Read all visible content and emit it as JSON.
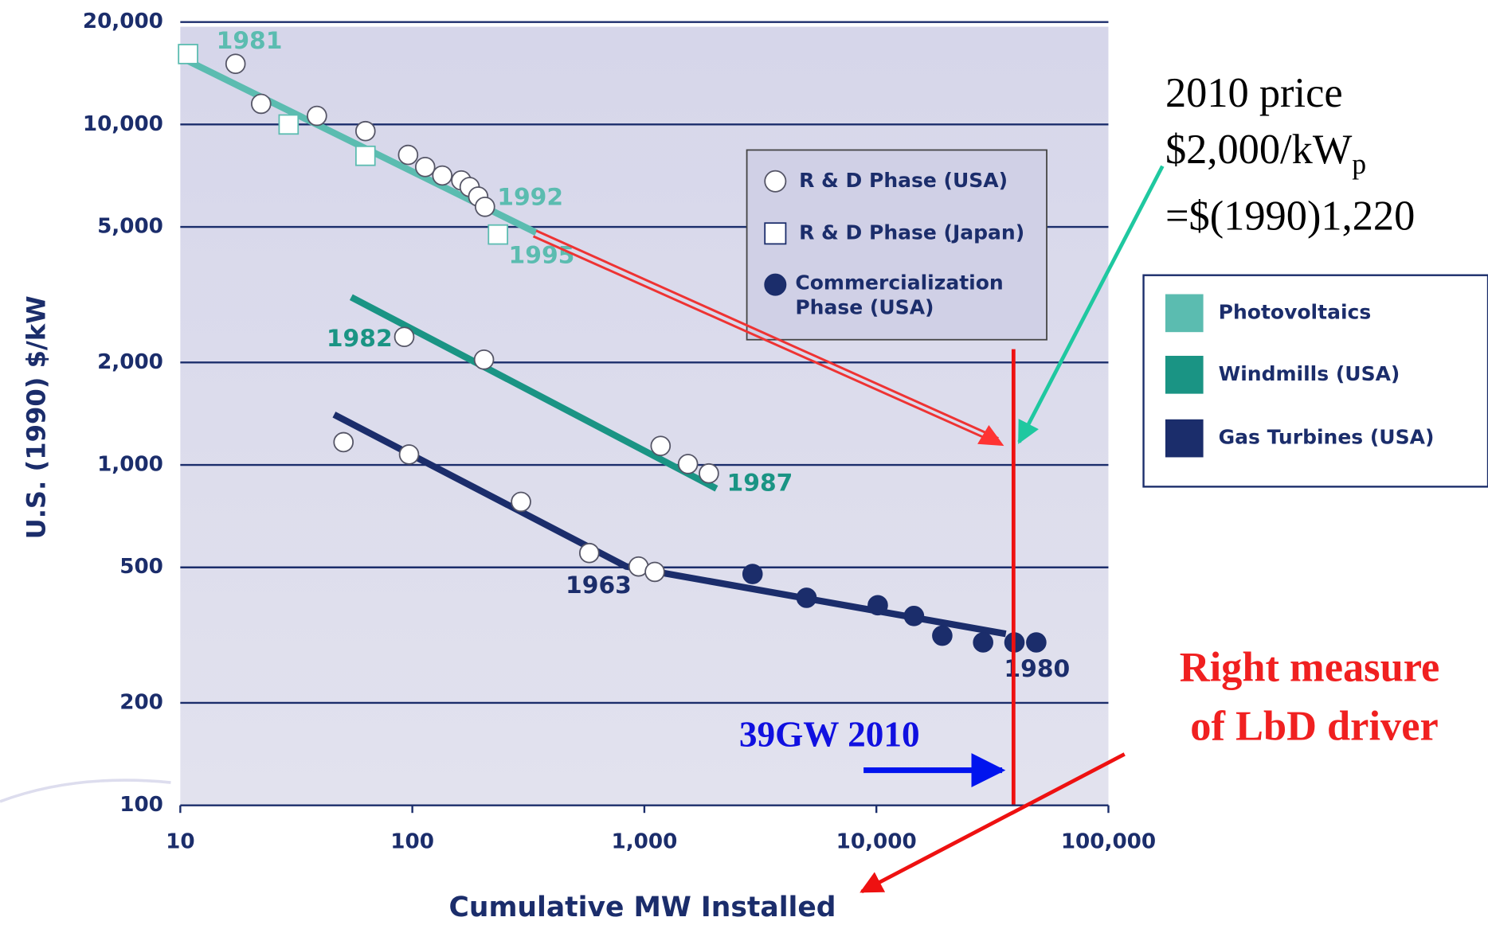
{
  "chart_data": {
    "type": "scatter",
    "xlabel": "Cumulative MW Installed",
    "ylabel": "U.S. (1990) $/kW",
    "xscale": "log",
    "yscale": "log",
    "xlim": [
      10,
      100000
    ],
    "ylim": [
      100,
      20000
    ],
    "xticks": [
      10,
      100,
      {
        "value": 1000,
        "label": "1,000"
      },
      {
        "value": 10000,
        "label": "10,000"
      },
      {
        "value": 100000,
        "label": "100,000"
      }
    ],
    "yticks": [
      100,
      200,
      500,
      {
        "value": 1000,
        "label": "1,000"
      },
      {
        "value": 2000,
        "label": "2,000"
      },
      {
        "value": 5000,
        "label": "5,000"
      },
      {
        "value": 10000,
        "label": "10,000"
      },
      {
        "value": 20000,
        "label": "20,000"
      }
    ],
    "grid": true,
    "markers": [
      {
        "name": "R & D Phase (USA)",
        "shape": "circle"
      },
      {
        "name": "R & D Phase (Japan)",
        "shape": "square"
      },
      {
        "name": "Commercialization Phase (USA)",
        "shape": "filled"
      }
    ],
    "series": [
      {
        "name": "Photovoltaics",
        "color": "#5bbcb0",
        "fit": {
          "x": [
            10,
            342
          ],
          "y": [
            15770,
            4810
          ]
        },
        "points": [
          {
            "shape": "circle",
            "x": [
              17.3,
              22.3,
              38.8,
              62.8,
              95.9,
              113.6,
              134.6,
              162.5,
              176.6,
              192.3,
              205.6
            ],
            "y": [
              15070,
              11500,
              10600,
              9560,
              8140,
              7500,
              7080,
              6850,
              6550,
              6140,
              5730
            ]
          },
          {
            "shape": "square",
            "x": [
              10.8,
              29.3,
              62.8,
              234
            ],
            "y": [
              16100,
              10000,
              8090,
              4750
            ]
          }
        ]
      },
      {
        "name": "Windmills (USA)",
        "color": "#1a9484",
        "fit": {
          "x": [
            54.5,
            2046
          ],
          "y": [
            3110,
            852
          ]
        },
        "points": [
          {
            "shape": "circle",
            "x": [
              92.3,
              203.6,
              1175,
              1542,
              1897
            ],
            "y": [
              2377,
              2038,
              1137,
              1006,
              944
            ]
          }
        ]
      },
      {
        "name": "Gas Turbines (USA)",
        "color": "#1b2d6b",
        "fit": {
          "x": [
            46,
            836,
            36140
          ],
          "y": [
            1405,
            503,
            319
          ]
        },
        "points": [
          {
            "shape": "circle",
            "x": [
              50.5,
              96.8,
              294,
              579,
              944,
              1109
            ],
            "y": [
              1166,
              1073,
              779,
              551,
              503,
              485
            ]
          },
          {
            "shape": "filled",
            "x": [
              2926,
              5000,
              10140,
              14520,
              19230,
              28840,
              39360,
              48870
            ],
            "y": [
              478,
              407,
              387,
              360,
              315,
              301,
              301,
              301
            ]
          }
        ]
      }
    ],
    "point_labels": [
      "1981",
      "1992",
      "1995",
      "1982",
      "1987",
      "1963",
      "1980"
    ],
    "annotations": {
      "price_line1": "2010 price",
      "price_line2": "$2,000/kW",
      "price_sub": "p",
      "price_line3": "=$(1990)1,220",
      "measure_line1": "Right measure",
      "measure_line2": "of LbD driver",
      "capacity": "39GW 2010"
    }
  }
}
